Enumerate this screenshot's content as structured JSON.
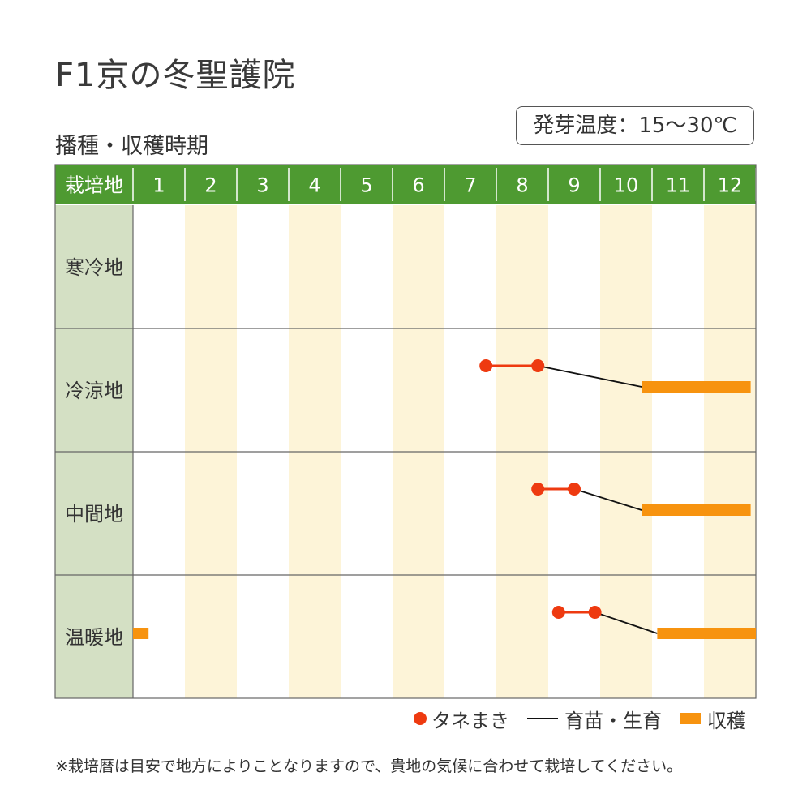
{
  "title": "F1京の冬聖護院",
  "subtitle": "播種・収穫時期",
  "badge": "発芽温度：15～30℃",
  "footnote": "※栽培暦は目安で地方によりことなりますので、貴地の気候に合わせて栽培してください。",
  "colors": {
    "header_green": "#4e9a31",
    "label_col": "#d4e0c4",
    "stripe": "#fdf4d8",
    "sowing": "#ee3a10",
    "growing": "#111111",
    "harvest": "#f7930f"
  },
  "chart_data": {
    "type": "table",
    "corner_label": "栽培地",
    "months": [
      "1",
      "2",
      "3",
      "4",
      "5",
      "6",
      "7",
      "8",
      "9",
      "10",
      "11",
      "12"
    ],
    "regions": [
      {
        "name": "寒冷地",
        "sowing": [],
        "growing": [],
        "harvest": []
      },
      {
        "name": "冷涼地",
        "sowing": [
          [
            7.8,
            8.8
          ]
        ],
        "growing": [
          [
            8.8,
            10.8
          ]
        ],
        "harvest": [
          [
            10.8,
            12.9
          ]
        ]
      },
      {
        "name": "中間地",
        "sowing": [
          [
            8.8,
            9.5
          ]
        ],
        "growing": [
          [
            9.5,
            10.8
          ]
        ],
        "harvest": [
          [
            10.8,
            12.9
          ]
        ]
      },
      {
        "name": "温暖地",
        "sowing": [
          [
            9.2,
            9.9
          ]
        ],
        "growing": [
          [
            9.9,
            11.1
          ]
        ],
        "harvest": [
          [
            1.0,
            1.3
          ],
          [
            11.1,
            13.0
          ]
        ]
      }
    ],
    "legend": [
      {
        "key": "sowing",
        "label": "タネまき"
      },
      {
        "key": "growing",
        "label": "育苗・生育"
      },
      {
        "key": "harvest",
        "label": "収穫"
      }
    ]
  }
}
